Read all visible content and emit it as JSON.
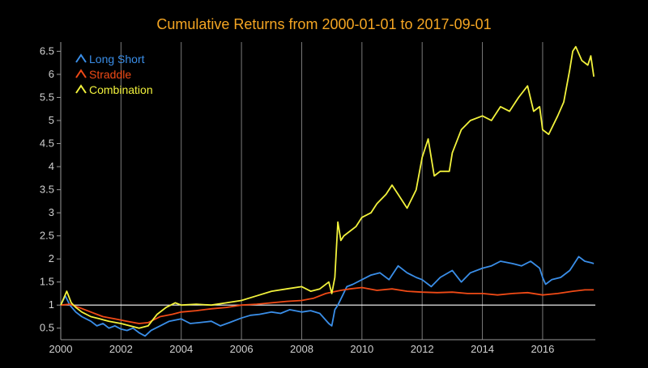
{
  "chart_data": {
    "type": "line",
    "title": "Cumulative Returns from 2000-01-01 to 2017-09-01",
    "xlabel": "",
    "ylabel": "",
    "xlim": [
      2000,
      2017.75
    ],
    "ylim": [
      0.25,
      6.7
    ],
    "x_ticks": [
      2000,
      2002,
      2004,
      2006,
      2008,
      2010,
      2012,
      2014,
      2016
    ],
    "x_tick_labels": [
      "2000",
      "2002",
      "2004",
      "2006",
      "2008",
      "2010",
      "2012",
      "2014",
      "2016"
    ],
    "y_ticks": [
      0.5,
      1,
      1.5,
      2,
      2.5,
      3,
      3.5,
      4,
      4.5,
      5,
      5.5,
      6,
      6.5
    ],
    "y_tick_labels": [
      "0.5",
      "1",
      "1.5",
      "2",
      "2.5",
      "3",
      "3.5",
      "4",
      "4.5",
      "5",
      "5.5",
      "6",
      "6.5"
    ],
    "grid": "vertical",
    "reference_line": 1,
    "legend_position": "top-left",
    "colors": {
      "background": "#000000",
      "title": "#f5a623",
      "grid": "#7a7a7a",
      "axis": "#9a9a9a",
      "reference": "#ffffff"
    },
    "series": [
      {
        "name": "Long Short",
        "color": "#3a8ee8",
        "x": [
          2000.0,
          2000.15,
          2000.3,
          2000.5,
          2000.7,
          2001.0,
          2001.2,
          2001.4,
          2001.6,
          2001.8,
          2002.0,
          2002.2,
          2002.4,
          2002.6,
          2002.8,
          2003.0,
          2003.3,
          2003.6,
          2004.0,
          2004.3,
          2004.6,
          2005.0,
          2005.3,
          2005.6,
          2006.0,
          2006.3,
          2006.6,
          2007.0,
          2007.3,
          2007.6,
          2008.0,
          2008.3,
          2008.6,
          2008.9,
          2009.0,
          2009.1,
          2009.2,
          2009.35,
          2009.5,
          2009.7,
          2010.0,
          2010.3,
          2010.6,
          2010.9,
          2011.2,
          2011.5,
          2011.8,
          2012.0,
          2012.3,
          2012.6,
          2013.0,
          2013.3,
          2013.6,
          2014.0,
          2014.3,
          2014.6,
          2015.0,
          2015.3,
          2015.6,
          2015.9,
          2016.0,
          2016.1,
          2016.3,
          2016.6,
          2016.9,
          2017.0,
          2017.2,
          2017.4,
          2017.6,
          2017.7
        ],
        "y": [
          1.0,
          1.2,
          1.0,
          0.85,
          0.75,
          0.65,
          0.55,
          0.6,
          0.5,
          0.55,
          0.48,
          0.45,
          0.5,
          0.4,
          0.33,
          0.45,
          0.55,
          0.65,
          0.7,
          0.6,
          0.62,
          0.65,
          0.55,
          0.62,
          0.72,
          0.78,
          0.8,
          0.85,
          0.82,
          0.9,
          0.85,
          0.88,
          0.82,
          0.6,
          0.55,
          0.9,
          1.0,
          1.2,
          1.4,
          1.45,
          1.55,
          1.65,
          1.7,
          1.55,
          1.85,
          1.7,
          1.6,
          1.55,
          1.4,
          1.6,
          1.75,
          1.5,
          1.7,
          1.8,
          1.85,
          1.95,
          1.9,
          1.85,
          1.95,
          1.8,
          1.6,
          1.45,
          1.55,
          1.6,
          1.75,
          1.85,
          2.05,
          1.95,
          1.92,
          1.9
        ]
      },
      {
        "name": "Straddle",
        "color": "#f04a16",
        "x": [
          2000.0,
          2000.3,
          2000.6,
          2001.0,
          2001.4,
          2001.8,
          2002.2,
          2002.6,
          2002.9,
          2003.3,
          2003.7,
          2004.0,
          2004.5,
          2005.0,
          2005.5,
          2006.0,
          2006.5,
          2007.0,
          2007.5,
          2008.0,
          2008.4,
          2008.8,
          2009.0,
          2009.3,
          2009.6,
          2010.0,
          2010.5,
          2011.0,
          2011.5,
          2012.0,
          2012.5,
          2013.0,
          2013.5,
          2014.0,
          2014.5,
          2015.0,
          2015.5,
          2016.0,
          2016.5,
          2017.0,
          2017.4,
          2017.7
        ],
        "y": [
          1.0,
          1.02,
          0.95,
          0.85,
          0.75,
          0.7,
          0.65,
          0.6,
          0.62,
          0.75,
          0.8,
          0.85,
          0.88,
          0.92,
          0.95,
          1.0,
          1.02,
          1.05,
          1.08,
          1.1,
          1.15,
          1.25,
          1.28,
          1.32,
          1.35,
          1.38,
          1.32,
          1.35,
          1.3,
          1.28,
          1.27,
          1.28,
          1.25,
          1.25,
          1.22,
          1.25,
          1.27,
          1.22,
          1.25,
          1.3,
          1.33,
          1.33
        ]
      },
      {
        "name": "Combination",
        "color": "#f2f23c",
        "x": [
          2000.0,
          2000.1,
          2000.2,
          2000.35,
          2000.5,
          2000.7,
          2001.0,
          2001.3,
          2001.6,
          2002.0,
          2002.3,
          2002.6,
          2002.9,
          2003.2,
          2003.5,
          2003.8,
          2004.0,
          2004.5,
          2005.0,
          2005.5,
          2006.0,
          2006.5,
          2007.0,
          2007.5,
          2008.0,
          2008.3,
          2008.6,
          2008.9,
          2009.0,
          2009.1,
          2009.2,
          2009.3,
          2009.4,
          2009.6,
          2009.8,
          2010.0,
          2010.3,
          2010.5,
          2010.8,
          2011.0,
          2011.2,
          2011.5,
          2011.8,
          2012.0,
          2012.2,
          2012.4,
          2012.6,
          2012.9,
          2013.0,
          2013.3,
          2013.6,
          2014.0,
          2014.3,
          2014.6,
          2014.9,
          2015.2,
          2015.5,
          2015.7,
          2015.9,
          2016.0,
          2016.2,
          2016.5,
          2016.7,
          2016.9,
          2017.0,
          2017.1,
          2017.3,
          2017.5,
          2017.6,
          2017.7
        ],
        "y": [
          1.0,
          1.15,
          1.3,
          1.05,
          0.95,
          0.85,
          0.75,
          0.7,
          0.65,
          0.6,
          0.55,
          0.5,
          0.55,
          0.8,
          0.95,
          1.05,
          1.0,
          1.02,
          1.0,
          1.05,
          1.1,
          1.2,
          1.3,
          1.35,
          1.4,
          1.3,
          1.35,
          1.5,
          1.25,
          1.6,
          2.8,
          2.4,
          2.5,
          2.6,
          2.7,
          2.9,
          3.0,
          3.2,
          3.4,
          3.6,
          3.4,
          3.1,
          3.5,
          4.2,
          4.6,
          3.8,
          3.9,
          3.9,
          4.3,
          4.8,
          5.0,
          5.1,
          5.0,
          5.3,
          5.2,
          5.5,
          5.75,
          5.2,
          5.3,
          4.8,
          4.7,
          5.1,
          5.4,
          6.1,
          6.5,
          6.6,
          6.3,
          6.2,
          6.4,
          5.95
        ]
      }
    ]
  }
}
